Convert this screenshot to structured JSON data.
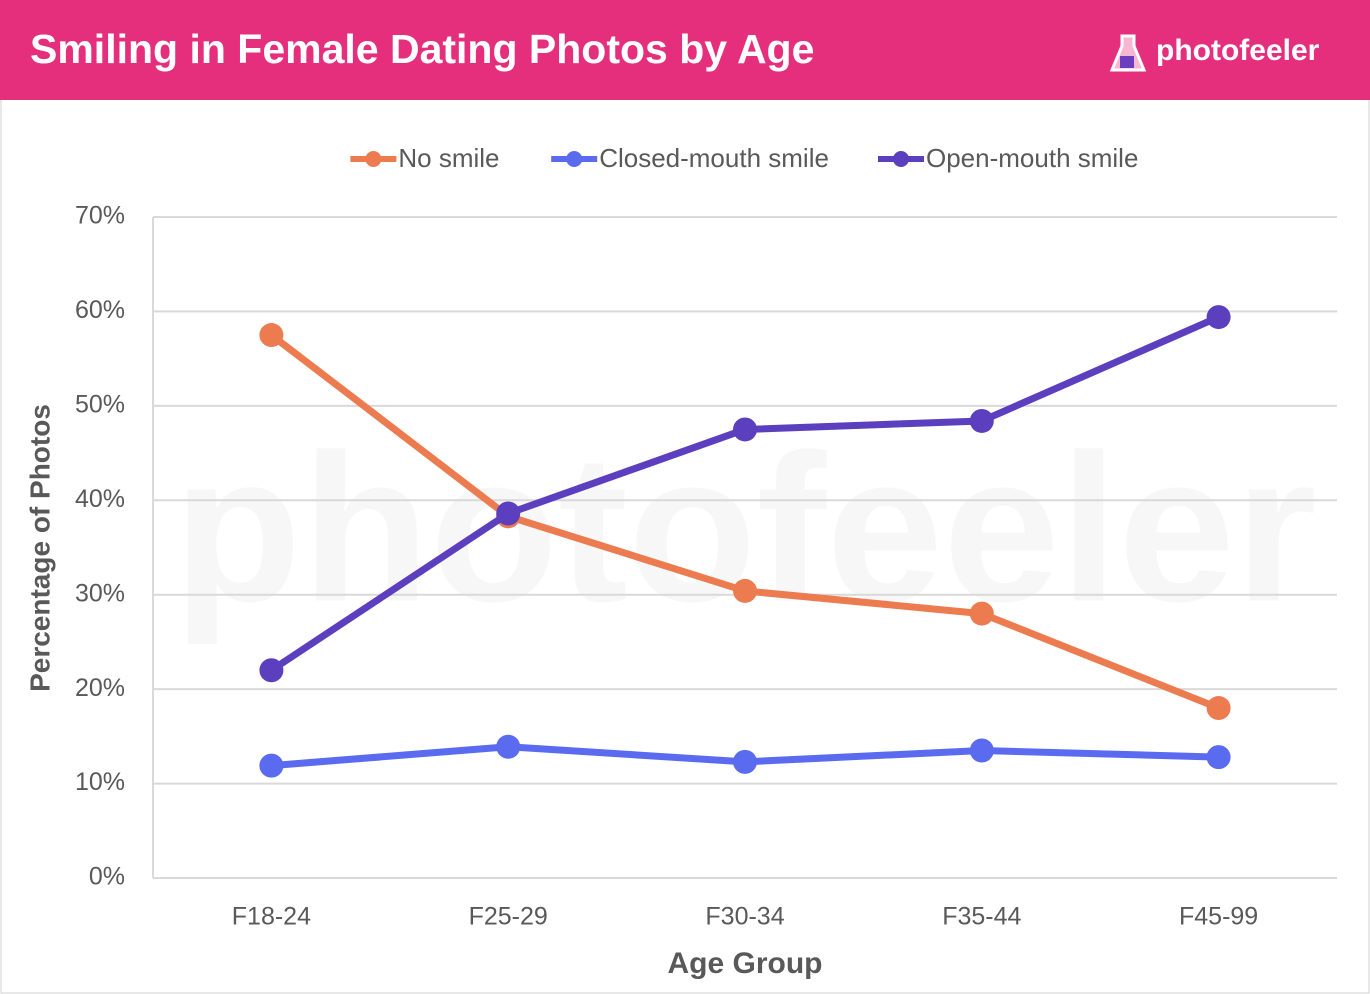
{
  "chart_data": {
    "type": "line",
    "title": "Smiling in Female Dating Photos by Age",
    "brand": "photofeeler",
    "watermark": "photofeeler",
    "x_label": "Age Group",
    "y_label": "Percentage of Photos",
    "categories": [
      "F18-24",
      "F25-29",
      "F30-34",
      "F35-44",
      "F45-99"
    ],
    "series": [
      {
        "name": "No smile",
        "color": "#ec7b50",
        "values": [
          57.5,
          38.3,
          30.4,
          28.0,
          18.0
        ]
      },
      {
        "name": "Closed-mouth smile",
        "color": "#5a6bf0",
        "values": [
          11.9,
          13.9,
          12.3,
          13.5,
          12.8
        ]
      },
      {
        "name": "Open-mouth smile",
        "color": "#5b3fbf",
        "values": [
          22.0,
          38.6,
          47.5,
          48.4,
          59.4
        ]
      }
    ],
    "ylim": [
      0,
      70
    ],
    "yticks": [
      {
        "value": 0,
        "label": "0%"
      },
      {
        "value": 10,
        "label": "10%"
      },
      {
        "value": 20,
        "label": "20%"
      },
      {
        "value": 30,
        "label": "30%"
      },
      {
        "value": 40,
        "label": "40%"
      },
      {
        "value": 50,
        "label": "50%"
      },
      {
        "value": 60,
        "label": "60%"
      },
      {
        "value": 70,
        "label": "70%"
      }
    ],
    "grid": true,
    "legend": "top"
  }
}
